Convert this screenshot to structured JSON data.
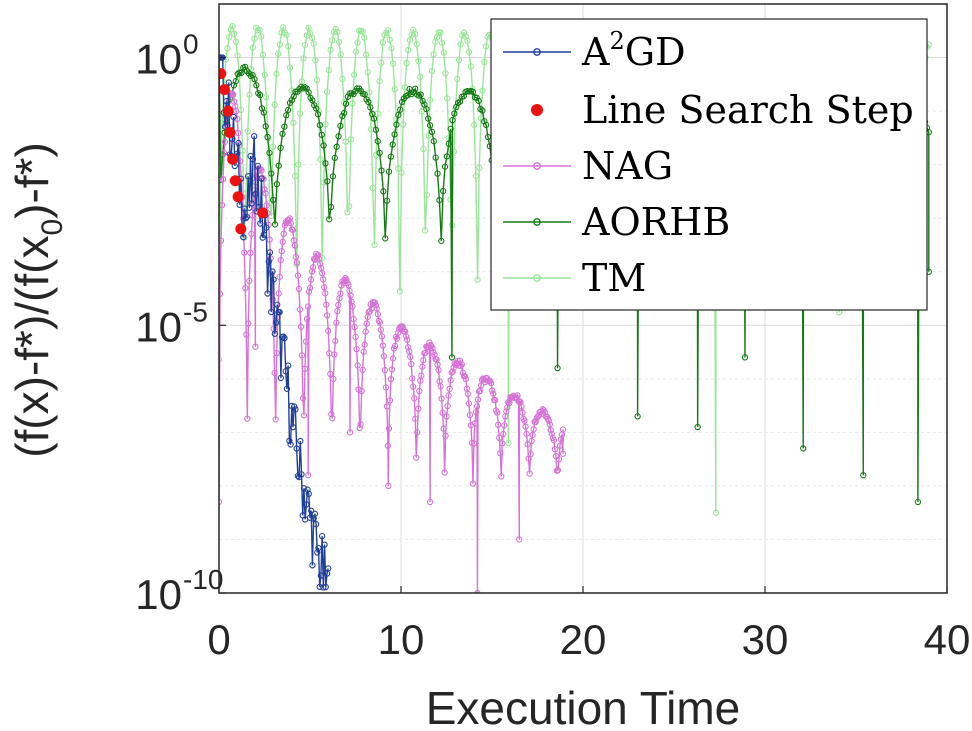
{
  "chart_data": {
    "type": "line",
    "xlabel": "Execution Time",
    "ylabel": "(f(x)-f*)/(f(x0)-f*)",
    "ylabel_parts": {
      "pre": "(f(x)-f*)/(f(x",
      "sub": "0",
      "post": ")-f*)"
    },
    "xlim": [
      0,
      40
    ],
    "ylim": [
      1e-10,
      10
    ],
    "yscale": "log",
    "grid": true,
    "legend_position": "top-right",
    "x_ticks": [
      "0",
      "10",
      "20",
      "30",
      "40"
    ],
    "x_tick_values": [
      0,
      10,
      20,
      30,
      40
    ],
    "y_ticks": [
      {
        "base": "10",
        "exp": "-10",
        "value": 1e-10
      },
      {
        "base": "10",
        "exp": "-5",
        "value": 1e-05
      },
      {
        "base": "10",
        "exp": "0",
        "value": 1
      }
    ],
    "legend": [
      {
        "label": "A",
        "sup": "2",
        "rest": "GD",
        "color": "#1f3f9a",
        "marker": "line-circle"
      },
      {
        "label": "Line Search Step",
        "color": "#ee1111",
        "marker": "dot"
      },
      {
        "label": "NAG",
        "color": "#d673d6",
        "marker": "line-circle"
      },
      {
        "label": "AORHB",
        "color": "#157a15",
        "marker": "line-circle"
      },
      {
        "label": "TM",
        "color": "#99e699",
        "marker": "line-circle"
      }
    ],
    "series": [
      {
        "name": "TM",
        "color": "#99e699",
        "kind": "oscillating",
        "x_start": 0,
        "x_end": 39.0,
        "n": 420,
        "period": 1.42,
        "envelope": {
          "x": [
            0,
            39
          ],
          "log_y": [
            0.55,
            0.3
          ]
        },
        "floor_log_y": -5.6,
        "dips": [
          {
            "x": 15.9,
            "log_y": -7.2
          },
          {
            "x": 27.3,
            "log_y": -8.5
          }
        ]
      },
      {
        "name": "AORHB",
        "color": "#157a15",
        "kind": "oscillating",
        "x_start": 0,
        "x_end": 39.0,
        "n": 380,
        "period": 3.05,
        "envelope": {
          "x": [
            0,
            3.5,
            39
          ],
          "log_y": [
            0,
            -0.55,
            -0.9
          ]
        },
        "floor_log_y": -4.2,
        "start_log_y": 0,
        "dips": [
          {
            "x": 12.8,
            "log_y": -5.6
          },
          {
            "x": 18.6,
            "log_y": -5.8
          },
          {
            "x": 23.0,
            "log_y": -6.7
          },
          {
            "x": 26.3,
            "log_y": -6.9
          },
          {
            "x": 28.9,
            "log_y": -5.6
          },
          {
            "x": 32.1,
            "log_y": -7.3
          },
          {
            "x": 35.4,
            "log_y": -7.8
          },
          {
            "x": 38.4,
            "log_y": -8.3
          }
        ],
        "end": {
          "x": 39.0,
          "log_y": -4.0
        }
      },
      {
        "name": "NAG",
        "color": "#d673d6",
        "kind": "oscillating",
        "x_start": 0,
        "x_end": 18.9,
        "n": 340,
        "period": 1.55,
        "envelope": {
          "x": [
            0,
            2.6,
            5.0,
            10.2,
            18.2
          ],
          "log_y": [
            0,
            -2.4,
            -3.6,
            -5.1,
            -6.7
          ]
        },
        "floor_log_y": -8.3,
        "dips": [
          {
            "x": 2.0,
            "log_y": -5.4
          },
          {
            "x": 4.9,
            "log_y": -7.8
          },
          {
            "x": 7.2,
            "log_y": -7.0
          },
          {
            "x": 9.3,
            "log_y": -8.0
          },
          {
            "x": 11.6,
            "log_y": -8.3
          },
          {
            "x": 14.2,
            "log_y": -10.0
          },
          {
            "x": 16.5,
            "log_y": -9.0
          },
          {
            "x": 18.9,
            "log_y": -7.4
          }
        ]
      },
      {
        "name": "A2GD",
        "color": "#1f3f9a",
        "kind": "noisy-decay",
        "x": [
          0,
          0.5,
          1.0,
          1.5,
          2.0,
          2.5,
          3.0,
          3.5,
          4.0,
          4.5,
          5.0,
          5.5,
          6.0
        ],
        "log_y": [
          0,
          -1.0,
          -2.1,
          -3.0,
          -2.0,
          -3.3,
          -4.6,
          -5.6,
          -6.8,
          -7.8,
          -8.6,
          -9.4,
          -10.0
        ]
      }
    ],
    "line_search_steps": {
      "name": "Line Search Step",
      "color": "#ee1111",
      "points": [
        {
          "x": 0.1,
          "log_y": -0.3
        },
        {
          "x": 0.3,
          "log_y": -0.6
        },
        {
          "x": 0.5,
          "log_y": -1.0
        },
        {
          "x": 0.6,
          "log_y": -1.4
        },
        {
          "x": 0.75,
          "log_y": -1.9
        },
        {
          "x": 0.9,
          "log_y": -2.3
        },
        {
          "x": 1.05,
          "log_y": -2.6
        },
        {
          "x": 1.2,
          "log_y": -3.2
        },
        {
          "x": 2.4,
          "log_y": -2.9
        }
      ]
    }
  }
}
